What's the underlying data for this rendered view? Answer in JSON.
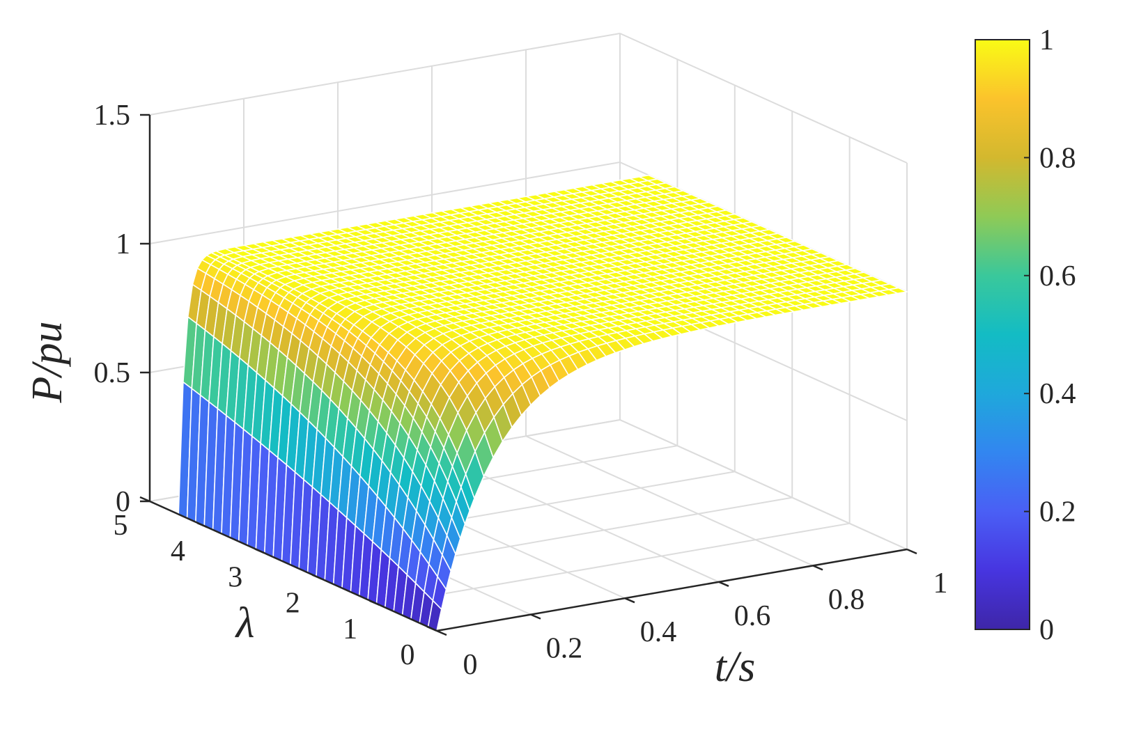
{
  "chart_data": {
    "type": "surface",
    "x_axis": {
      "label": "t/s",
      "range": [
        0,
        1
      ],
      "ticks": [
        0,
        0.2,
        0.4,
        0.6,
        0.8,
        1
      ],
      "tick_labels": [
        "0",
        "0.2",
        "0.4",
        "0.6",
        "0.8",
        "1"
      ]
    },
    "y_axis": {
      "label": "λ",
      "range": [
        0,
        5
      ],
      "ticks": [
        0,
        1,
        2,
        3,
        4,
        5
      ],
      "tick_labels": [
        "0",
        "1",
        "2",
        "3",
        "4",
        "5"
      ]
    },
    "z_axis": {
      "label": "P/pu",
      "range": [
        0,
        1.5
      ],
      "ticks": [
        0,
        0.5,
        1,
        1.5
      ],
      "tick_labels": [
        "0",
        "0.5",
        "1",
        "1.5"
      ]
    },
    "surface": {
      "description_formula": "P = 1 - exp(-(lambda + 0.6) * 14 * t)",
      "t": [
        0,
        0.01,
        0.02,
        0.03,
        0.04,
        0.06,
        0.08,
        0.1,
        0.15,
        0.2,
        0.3,
        0.4,
        0.5,
        0.6,
        0.7,
        0.8,
        0.9,
        1.0
      ],
      "lambda": [
        0,
        1,
        2,
        3,
        4,
        4.5
      ],
      "P_at_lambda_0": [
        0,
        0.08,
        0.16,
        0.22,
        0.29,
        0.4,
        0.49,
        0.57,
        0.72,
        0.81,
        0.92,
        0.97,
        0.99,
        1,
        1,
        1,
        1,
        1
      ],
      "P_at_lambda_4_5": [
        0,
        0.51,
        0.76,
        0.88,
        0.94,
        0.99,
        1,
        1,
        1,
        1,
        1,
        1,
        1,
        1,
        1,
        1,
        1,
        1
      ]
    },
    "colormap": "parula",
    "colorbar": {
      "range": [
        0,
        1
      ],
      "ticks": [
        0,
        0.2,
        0.4,
        0.6,
        0.8,
        1
      ],
      "tick_labels": [
        "0",
        "0.2",
        "0.4",
        "0.6",
        "0.8",
        "1"
      ]
    },
    "grid": true
  }
}
